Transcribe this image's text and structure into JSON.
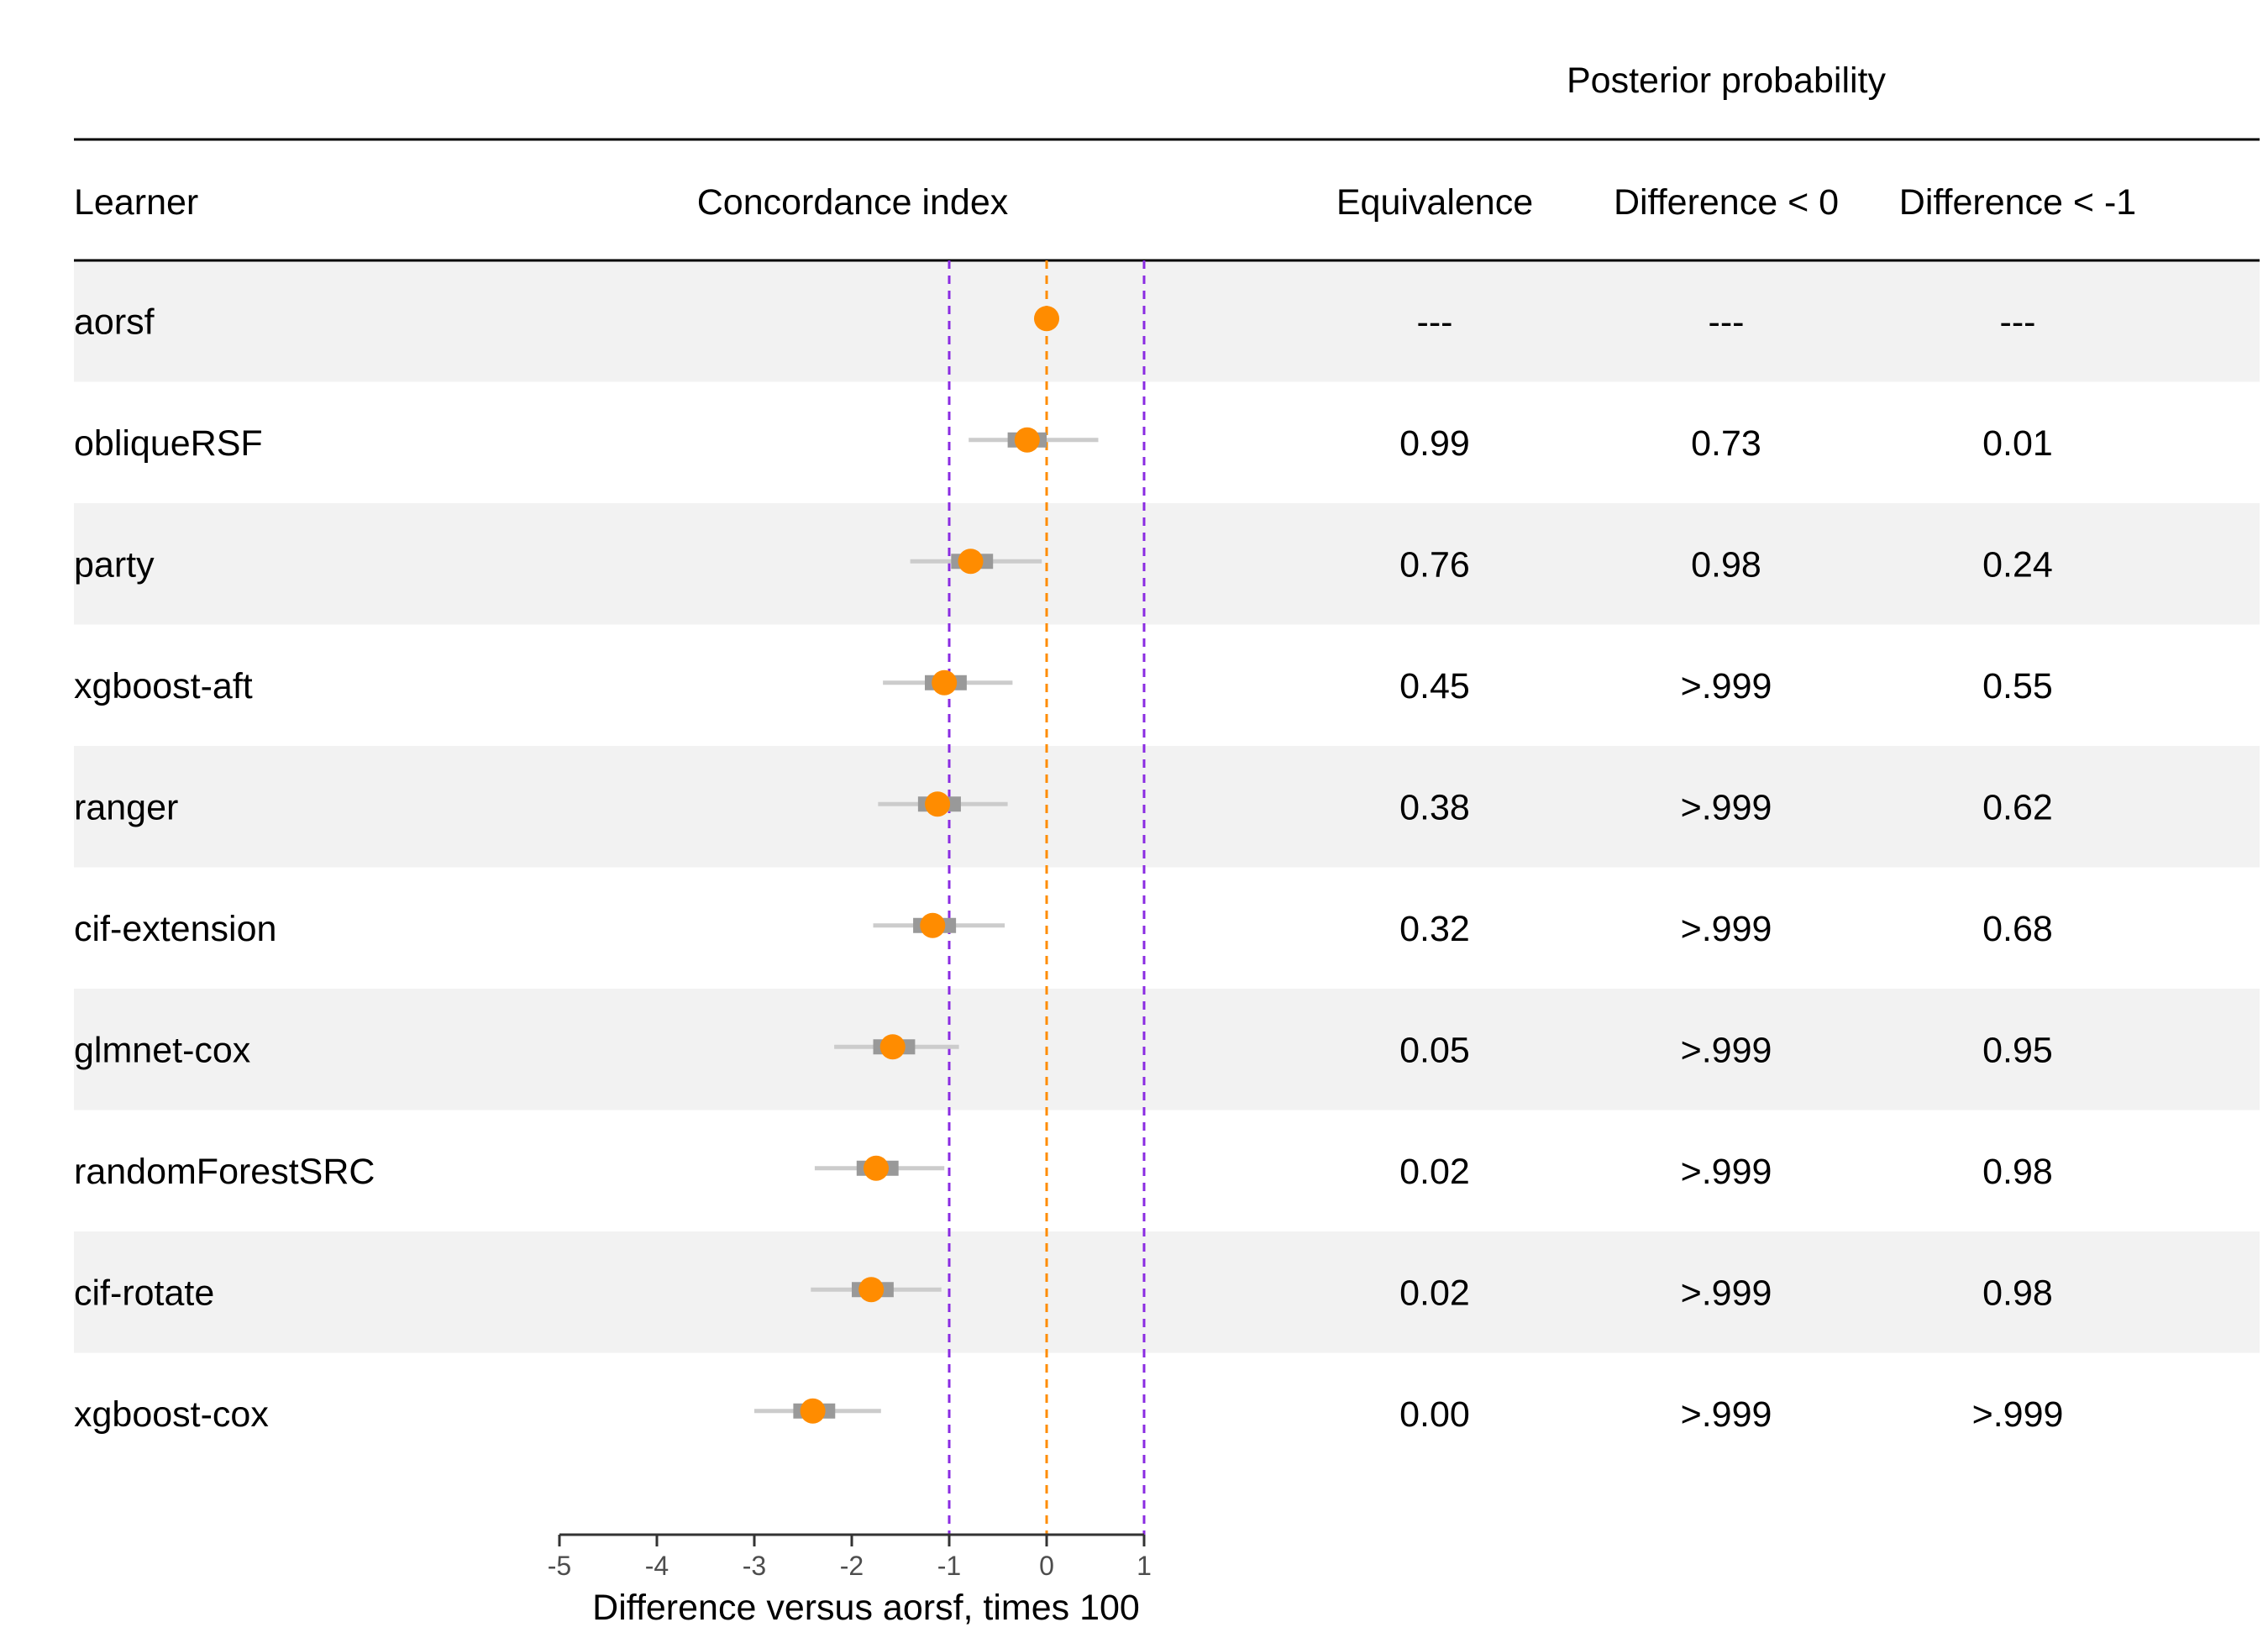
{
  "chart_data": {
    "type": "forest",
    "header": {
      "group_label": "Posterior probability",
      "columns": [
        "Learner",
        "Concordance index",
        "Equivalence",
        "Difference < 0",
        "Difference < -1"
      ]
    },
    "xlabel": "Difference versus aorsf, times 100",
    "xlim": [
      -5,
      1
    ],
    "xticks": [
      -5,
      -4,
      -3,
      -2,
      -1,
      0,
      1
    ],
    "xtick_labels": [
      "-5",
      "-4",
      "-3",
      "-2",
      "-1",
      "0",
      "1"
    ],
    "reference_lines": [
      {
        "x": -1,
        "color": "#8a2be2",
        "style": "dashed"
      },
      {
        "x": 0,
        "color": "#ff8c00",
        "style": "dashed"
      },
      {
        "x": 1,
        "color": "#8a2be2",
        "style": "dashed"
      }
    ],
    "rows": [
      {
        "learner": "aorsf",
        "est": 0.0,
        "inner": [
          0.0,
          0.0
        ],
        "outer": [
          0.0,
          0.0
        ],
        "equivalence": "---",
        "diff_lt_0": "---",
        "diff_lt_m1": "---"
      },
      {
        "learner": "obliqueRSF",
        "est": -0.2,
        "inner": [
          -0.4,
          0.0
        ],
        "outer": [
          -0.8,
          0.53
        ],
        "equivalence": "0.99",
        "diff_lt_0": "0.73",
        "diff_lt_m1": "0.01"
      },
      {
        "learner": "party",
        "est": -0.78,
        "inner": [
          -0.98,
          -0.55
        ],
        "outer": [
          -1.4,
          -0.05
        ],
        "equivalence": "0.76",
        "diff_lt_0": "0.98",
        "diff_lt_m1": "0.24"
      },
      {
        "learner": "xgboost-aft",
        "est": -1.05,
        "inner": [
          -1.25,
          -0.82
        ],
        "outer": [
          -1.68,
          -0.35
        ],
        "equivalence": "0.45",
        "diff_lt_0": ">.999",
        "diff_lt_m1": "0.55"
      },
      {
        "learner": "ranger",
        "est": -1.12,
        "inner": [
          -1.32,
          -0.88
        ],
        "outer": [
          -1.73,
          -0.4
        ],
        "equivalence": "0.38",
        "diff_lt_0": ">.999",
        "diff_lt_m1": "0.62"
      },
      {
        "learner": "cif-extension",
        "est": -1.17,
        "inner": [
          -1.37,
          -0.93
        ],
        "outer": [
          -1.78,
          -0.43
        ],
        "equivalence": "0.32",
        "diff_lt_0": ">.999",
        "diff_lt_m1": "0.68"
      },
      {
        "learner": "glmnet-cox",
        "est": -1.58,
        "inner": [
          -1.78,
          -1.35
        ],
        "outer": [
          -2.18,
          -0.9
        ],
        "equivalence": "0.05",
        "diff_lt_0": ">.999",
        "diff_lt_m1": "0.95"
      },
      {
        "learner": "randomForestSRC",
        "est": -1.75,
        "inner": [
          -1.95,
          -1.52
        ],
        "outer": [
          -2.38,
          -1.05
        ],
        "equivalence": "0.02",
        "diff_lt_0": ">.999",
        "diff_lt_m1": "0.98"
      },
      {
        "learner": "cif-rotate",
        "est": -1.8,
        "inner": [
          -2.0,
          -1.57
        ],
        "outer": [
          -2.42,
          -1.08
        ],
        "equivalence": "0.02",
        "diff_lt_0": ">.999",
        "diff_lt_m1": "0.98"
      },
      {
        "learner": "xgboost-cox",
        "est": -2.4,
        "inner": [
          -2.6,
          -2.17
        ],
        "outer": [
          -3.0,
          -1.7
        ],
        "equivalence": "0.00",
        "diff_lt_0": ">.999",
        "diff_lt_m1": ">.999"
      }
    ],
    "colors": {
      "point": "#ff8c00",
      "inner_interval": "#999999",
      "outer_interval": "#cccccc",
      "row_shade": "#f2f2f2",
      "axis": "#333333"
    }
  }
}
